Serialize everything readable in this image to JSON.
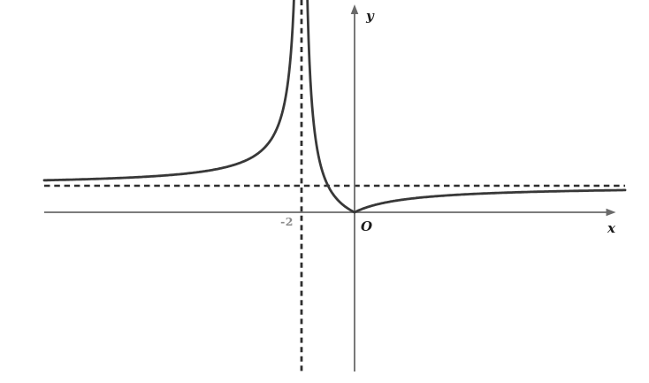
{
  "figure": {
    "background": "#ffffff",
    "labels": {
      "y_axis": "y",
      "x_axis": "x",
      "origin": "O",
      "x_tick": "-2"
    }
  },
  "chart_data": {
    "type": "line",
    "title": "",
    "function": "y = |x / (x + 2)|",
    "xlabel": "x",
    "ylabel": "y",
    "origin_label": "O",
    "x_tick_labels": [
      "-2"
    ],
    "vertical_asymptote": {
      "x": -2,
      "style": "dashed"
    },
    "horizontal_asymptote": {
      "y": 1,
      "style": "dashed"
    },
    "touches_x_axis_at": {
      "x": 0,
      "y": 0
    },
    "x_range": [
      -11.7,
      10.2
    ],
    "y_range": [
      0,
      8
    ],
    "grid": false,
    "legend": false,
    "series": [
      {
        "name": "left branch (x < -2)",
        "x": [
          -11.7,
          -10,
          -8,
          -6,
          -5,
          -4,
          -3.5,
          -3,
          -2.7,
          -2.5,
          -2.4,
          -2.33
        ],
        "y": [
          1.21,
          1.25,
          1.33,
          1.5,
          1.67,
          2.0,
          2.33,
          3.0,
          3.86,
          5.0,
          6.0,
          7.06
        ]
      },
      {
        "name": "right branch (x > -2)",
        "x": [
          -1.78,
          -1.5,
          -1.0,
          -0.5,
          0.0,
          1.0,
          2.0,
          3.0,
          4.0,
          6.0,
          8.0,
          10.2
        ],
        "y": [
          8.0,
          3.0,
          1.0,
          0.33,
          0.0,
          0.33,
          0.5,
          0.6,
          0.67,
          0.75,
          0.8,
          0.84
        ]
      }
    ],
    "colors": {
      "curve": "#383838",
      "axes": "#6a6a6a",
      "asymptote_dashes": "#2f2f2f",
      "tick_label": "#8a8a8a",
      "axis_label": "#1c1c1c"
    }
  }
}
